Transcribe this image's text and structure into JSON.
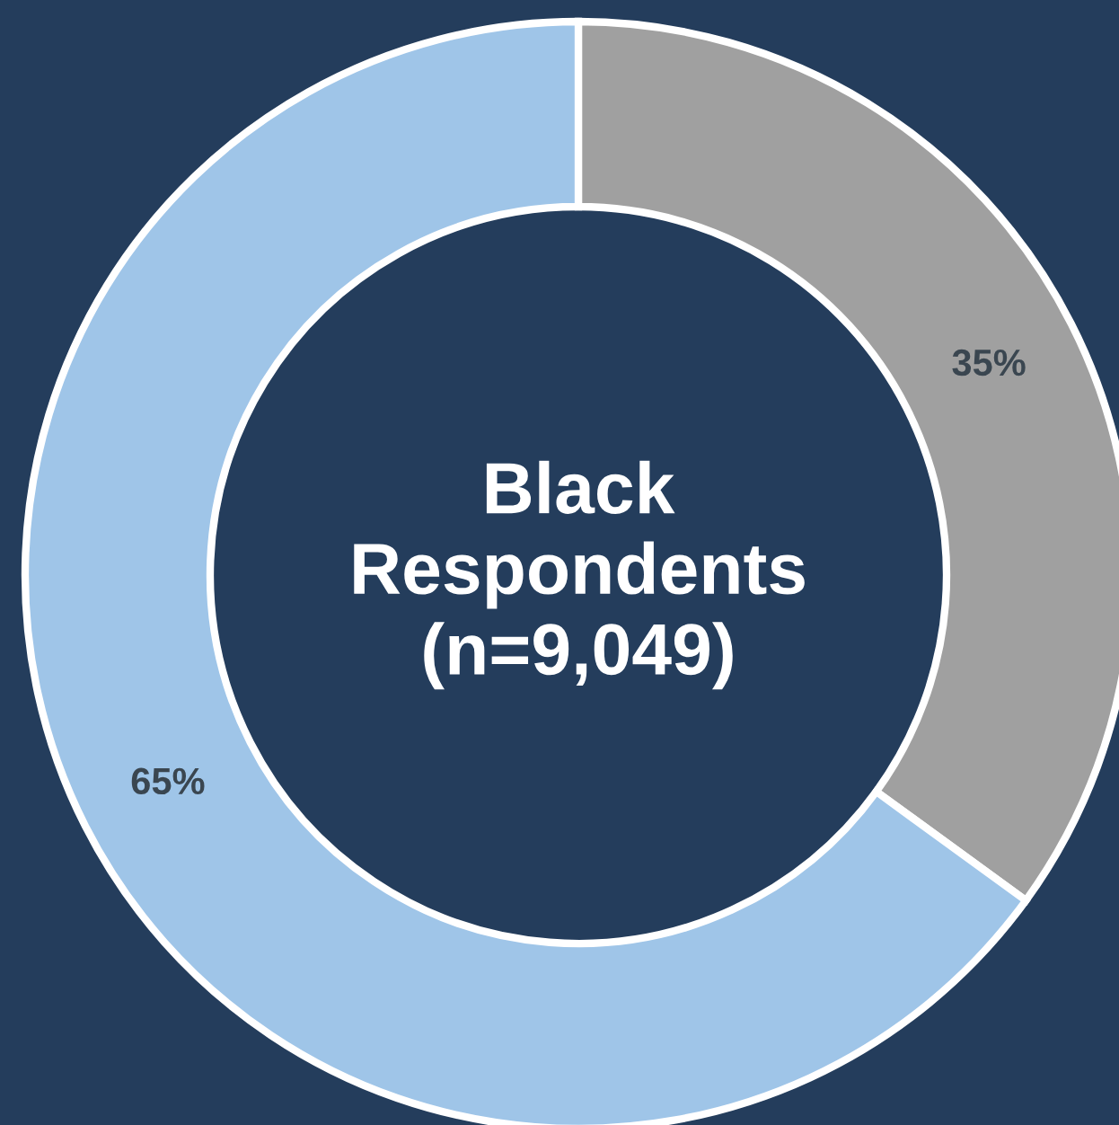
{
  "chart_data": {
    "type": "donut",
    "title": "Black\nRespondents\n(n=9,049)",
    "categories": [
      null,
      null
    ],
    "values": [
      35,
      65
    ],
    "colors": [
      "#a0a0a0",
      "#9fc5e8"
    ],
    "value_labels": [
      "35%",
      "65%"
    ]
  }
}
